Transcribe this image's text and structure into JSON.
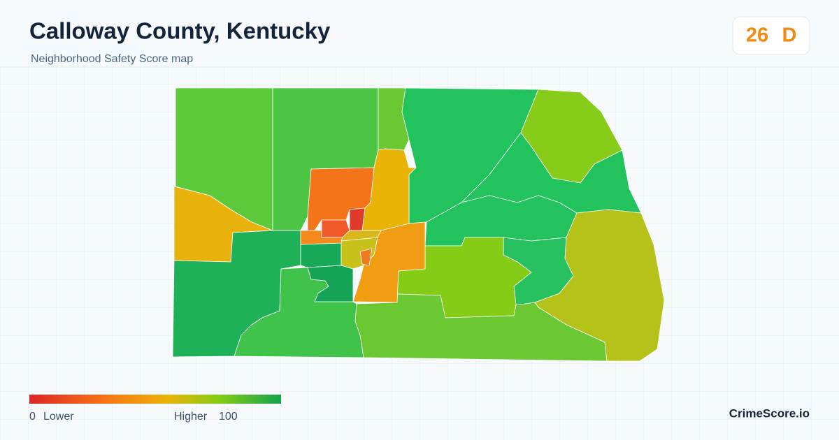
{
  "header": {
    "title": "Calloway County, Kentucky",
    "subtitle": "Neighborhood Safety Score map"
  },
  "score": {
    "value": 26,
    "grade": "D"
  },
  "legend": {
    "min": 0,
    "min_label": "Lower",
    "max_label": "Higher",
    "max": 100
  },
  "brand": "CrimeScore.io"
}
